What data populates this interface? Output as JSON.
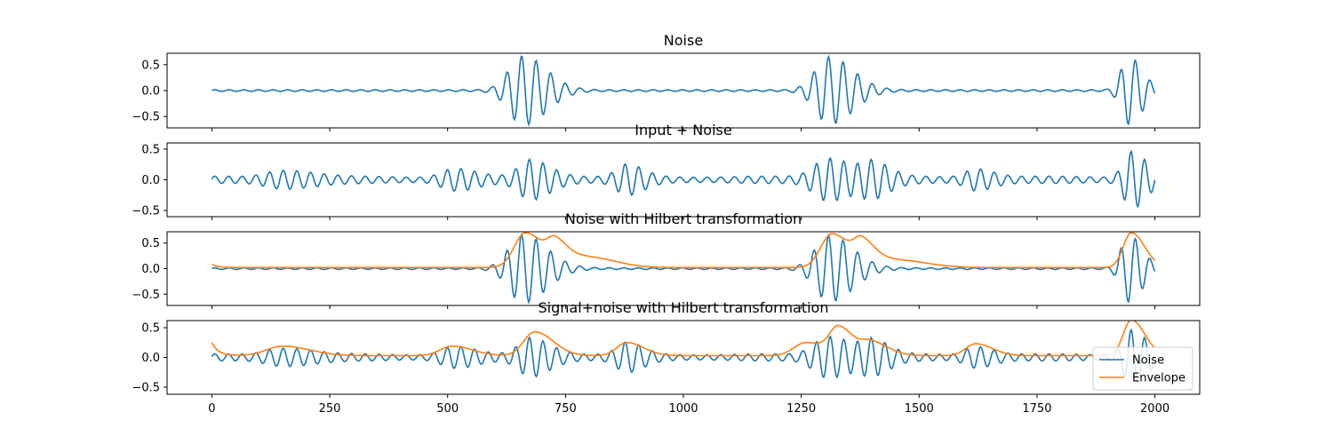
{
  "chart_data": [
    {
      "type": "line",
      "title": "Noise",
      "ylim": [
        -0.72,
        0.72
      ],
      "yticks": [
        -0.5,
        0.0,
        0.5
      ],
      "ytick_labels": [
        "−0.5",
        "0.0",
        "0.5"
      ],
      "xlim": [
        -95,
        2095
      ],
      "series": [
        {
          "color": "#1f77b4",
          "kind": "noise-oscillation",
          "env_peaks": [
            [
              660,
              0.66,
              70
            ],
            [
              1310,
              0.64,
              70
            ],
            [
              1945,
              0.64,
              40
            ]
          ],
          "env_floor": 0.015
        }
      ]
    },
    {
      "type": "line",
      "title": "Input + Noise",
      "ylim": [
        -0.6,
        0.6
      ],
      "yticks": [
        -0.5,
        0.0,
        0.5
      ],
      "ytick_labels": [
        "−0.5",
        "0.0",
        "0.5"
      ],
      "xlim": [
        -95,
        2095
      ],
      "series": [
        {
          "color": "#1f77b4",
          "kind": "signal-plus-noise",
          "env_peaks": [
            [
              150,
              0.16,
              80
            ],
            [
              510,
              0.16,
              60
            ],
            [
              680,
              0.36,
              60
            ],
            [
              880,
              0.2,
              50
            ],
            [
              1310,
              0.44,
              70
            ],
            [
              1400,
              0.25,
              50
            ],
            [
              1620,
              0.2,
              50
            ],
            [
              1950,
              0.58,
              40
            ]
          ],
          "env_floor": 0.06
        }
      ]
    },
    {
      "type": "line",
      "title": "Noise with Hilbert transformation",
      "ylim": [
        -0.72,
        0.72
      ],
      "yticks": [
        -0.5,
        0.0,
        0.5
      ],
      "ytick_labels": [
        "−0.5",
        "0.0",
        "0.5"
      ],
      "xlim": [
        -95,
        2095
      ],
      "series": [
        {
          "color": "#1f77b4",
          "kind": "noise-oscillation",
          "env_peaks": [
            [
              660,
              0.66,
              70
            ],
            [
              1310,
              0.64,
              70
            ],
            [
              1945,
              0.64,
              40
            ]
          ],
          "env_floor": 0.015
        },
        {
          "color": "#ff7f0e",
          "kind": "envelope",
          "env_peaks": [
            [
              665,
              0.68,
              55
            ],
            [
              730,
              0.42,
              40
            ],
            [
              800,
              0.2,
              80
            ],
            [
              1315,
              0.66,
              55
            ],
            [
              1380,
              0.42,
              40
            ],
            [
              1450,
              0.15,
              90
            ],
            [
              1950,
              0.68,
              40
            ]
          ],
          "env_floor": 0.02,
          "start_value": 0.08
        }
      ]
    },
    {
      "type": "line",
      "title": "Signal+noise with Hilbert transformation",
      "ylim": [
        -0.62,
        0.62
      ],
      "yticks": [
        -0.5,
        0.0,
        0.5
      ],
      "ytick_labels": [
        "−0.5",
        "0.0",
        "0.5"
      ],
      "xlim": [
        -95,
        2095
      ],
      "xticks": [
        0,
        250,
        500,
        750,
        1000,
        1250,
        1500,
        1750,
        2000
      ],
      "xtick_labels": [
        "0",
        "250",
        "500",
        "750",
        "1000",
        "1250",
        "1500",
        "1750",
        "2000"
      ],
      "legend": {
        "placement": "lower-right",
        "entries": [
          "Noise",
          "Envelope"
        ]
      },
      "series": [
        {
          "name": "Noise",
          "color": "#1f77b4",
          "kind": "signal-plus-noise",
          "env_peaks": [
            [
              150,
              0.16,
              80
            ],
            [
              510,
              0.16,
              60
            ],
            [
              680,
              0.36,
              60
            ],
            [
              880,
              0.2,
              50
            ],
            [
              1310,
              0.44,
              70
            ],
            [
              1400,
              0.25,
              50
            ],
            [
              1620,
              0.2,
              50
            ],
            [
              1950,
              0.58,
              40
            ]
          ],
          "env_floor": 0.06
        },
        {
          "name": "Envelope",
          "color": "#ff7f0e",
          "kind": "envelope",
          "env_peaks": [
            [
              150,
              0.16,
              80
            ],
            [
              510,
              0.16,
              60
            ],
            [
              685,
              0.4,
              55
            ],
            [
              880,
              0.22,
              50
            ],
            [
              1260,
              0.22,
              60
            ],
            [
              1330,
              0.45,
              45
            ],
            [
              1400,
              0.22,
              50
            ],
            [
              1620,
              0.2,
              50
            ],
            [
              1950,
              0.6,
              40
            ]
          ],
          "env_floor": 0.03,
          "start_value": 0.25
        }
      ]
    }
  ]
}
